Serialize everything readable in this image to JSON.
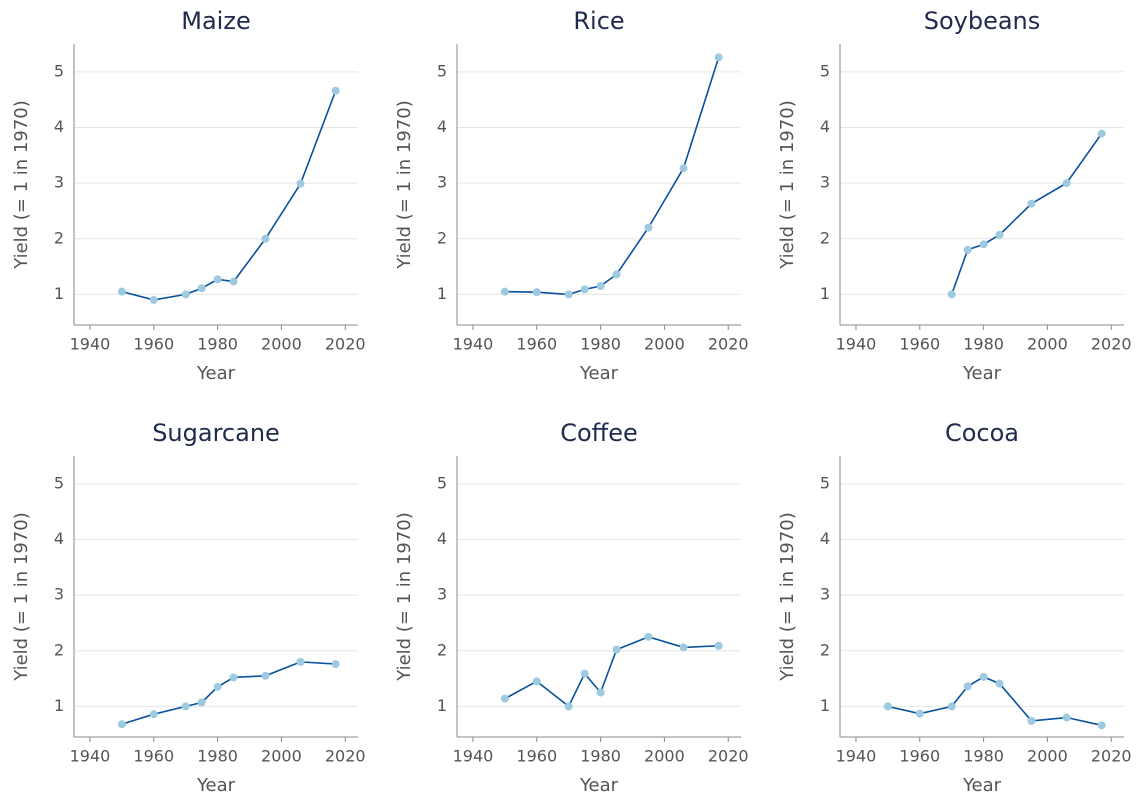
{
  "chart_data": [
    {
      "type": "line",
      "title": "Maize",
      "xlabel": "Year",
      "ylabel": "Yield (= 1 in 1970)",
      "x": [
        1950,
        1960,
        1970,
        1975,
        1980,
        1985,
        1995,
        2006,
        2017
      ],
      "values": [
        1.05,
        0.9,
        1.0,
        1.11,
        1.27,
        1.23,
        2.0,
        2.99,
        4.66
      ],
      "color": "#08519c",
      "marker_color": "#9ecae1",
      "xlim": [
        1935,
        2024
      ],
      "xticks": [
        1940,
        1960,
        1980,
        2000,
        2020
      ],
      "ylim": [
        0.45,
        5.5
      ],
      "yticks": [
        1,
        2,
        3,
        4,
        5
      ],
      "grid": true
    },
    {
      "type": "line",
      "title": "Rice",
      "xlabel": "Year",
      "ylabel": "Yield (= 1 in 1970)",
      "x": [
        1950,
        1960,
        1970,
        1975,
        1980,
        1985,
        1995,
        2006,
        2017
      ],
      "values": [
        1.05,
        1.04,
        1.0,
        1.09,
        1.15,
        1.36,
        2.2,
        3.27,
        5.26
      ],
      "color": "#08519c",
      "marker_color": "#9ecae1",
      "xlim": [
        1935,
        2024
      ],
      "xticks": [
        1940,
        1960,
        1980,
        2000,
        2020
      ],
      "ylim": [
        0.45,
        5.5
      ],
      "yticks": [
        1,
        2,
        3,
        4,
        5
      ],
      "grid": true
    },
    {
      "type": "line",
      "title": "Soybeans",
      "xlabel": "Year",
      "ylabel": "Yield (= 1 in 1970)",
      "x": [
        1950,
        1960,
        1970,
        1975,
        1980,
        1985,
        1995,
        2006,
        2017
      ],
      "values": [
        null,
        null,
        1.0,
        1.8,
        1.9,
        2.07,
        2.63,
        3.0,
        3.89
      ],
      "color": "#08519c",
      "marker_color": "#9ecae1",
      "xlim": [
        1935,
        2024
      ],
      "xticks": [
        1940,
        1960,
        1980,
        2000,
        2020
      ],
      "ylim": [
        0.45,
        5.5
      ],
      "yticks": [
        1,
        2,
        3,
        4,
        5
      ],
      "grid": true
    },
    {
      "type": "line",
      "title": "Sugarcane",
      "xlabel": "Year",
      "ylabel": "Yield (= 1 in 1970)",
      "x": [
        1950,
        1960,
        1970,
        1975,
        1980,
        1985,
        1995,
        2006,
        2017
      ],
      "values": [
        0.68,
        0.86,
        1.0,
        1.07,
        1.35,
        1.52,
        1.55,
        1.8,
        1.76
      ],
      "color": "#08519c",
      "marker_color": "#9ecae1",
      "xlim": [
        1935,
        2024
      ],
      "xticks": [
        1940,
        1960,
        1980,
        2000,
        2020
      ],
      "ylim": [
        0.45,
        5.5
      ],
      "yticks": [
        1,
        2,
        3,
        4,
        5
      ],
      "grid": true
    },
    {
      "type": "line",
      "title": "Coffee",
      "xlabel": "Year",
      "ylabel": "Yield (= 1 in 1970)",
      "x": [
        1950,
        1960,
        1970,
        1975,
        1980,
        1985,
        1995,
        2006,
        2017
      ],
      "values": [
        1.14,
        1.45,
        1.0,
        1.59,
        1.25,
        2.02,
        2.25,
        2.06,
        2.09
      ],
      "color": "#08519c",
      "marker_color": "#9ecae1",
      "xlim": [
        1935,
        2024
      ],
      "xticks": [
        1940,
        1960,
        1980,
        2000,
        2020
      ],
      "ylim": [
        0.45,
        5.5
      ],
      "yticks": [
        1,
        2,
        3,
        4,
        5
      ],
      "grid": true
    },
    {
      "type": "line",
      "title": "Cocoa",
      "xlabel": "Year",
      "ylabel": "Yield (= 1 in 1970)",
      "x": [
        1950,
        1960,
        1970,
        1975,
        1980,
        1985,
        1995,
        2006,
        2017
      ],
      "values": [
        1.0,
        0.87,
        1.0,
        1.36,
        1.53,
        1.41,
        0.74,
        0.8,
        0.66
      ],
      "color": "#08519c",
      "marker_color": "#9ecae1",
      "xlim": [
        1935,
        2024
      ],
      "xticks": [
        1940,
        1960,
        1980,
        2000,
        2020
      ],
      "ylim": [
        0.45,
        5.5
      ],
      "yticks": [
        1,
        2,
        3,
        4,
        5
      ],
      "grid": true
    }
  ]
}
